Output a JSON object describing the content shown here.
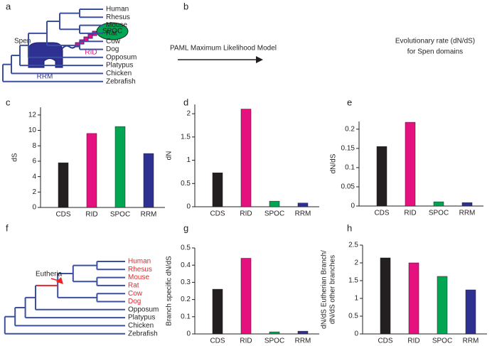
{
  "panel_labels": [
    "a",
    "b",
    "c",
    "d",
    "e",
    "f",
    "g",
    "h"
  ],
  "tree_a": {
    "color": "#3b4fa0",
    "species": [
      "Human",
      "Rhesus",
      "Mouse",
      "Rat",
      "Cow",
      "Dog",
      "Opposum",
      "Platypus",
      "Chicken",
      "Zebrafish"
    ]
  },
  "diagram_b": {
    "protein": "Spen",
    "spoc": "SPOC",
    "rid": "RID",
    "rrm": "RRM",
    "method": "PAML Maximum Likelihood Model",
    "result": [
      "Evolutionary rate (dN/dS)",
      "for Spen domains"
    ]
  },
  "tree_f": {
    "color": "#3b4fa0",
    "highlight_color": "#e8262a",
    "annotation": "Eutheria",
    "species": [
      {
        "name": "Human",
        "color": "#e8262a"
      },
      {
        "name": "Rhesus",
        "color": "#e8262a"
      },
      {
        "name": "Mouse",
        "color": "#e8262a"
      },
      {
        "name": "Rat",
        "color": "#e8262a"
      },
      {
        "name": "Cow",
        "color": "#e8262a"
      },
      {
        "name": "Dog",
        "color": "#e8262a"
      },
      {
        "name": "Opposum",
        "color": "#231f20"
      },
      {
        "name": "Platypus",
        "color": "#231f20"
      },
      {
        "name": "Chicken",
        "color": "#231f20"
      },
      {
        "name": "Zebrafish",
        "color": "#231f20"
      }
    ]
  },
  "chart_data": [
    {
      "type": "bar",
      "ylabel": "dS",
      "categories": [
        "CDS",
        "RID",
        "SPOC",
        "RRM"
      ],
      "values": [
        5.8,
        9.6,
        10.5,
        7.0
      ],
      "colors": [
        "#231f20",
        "#e4117f",
        "#00a651",
        "#2e3192"
      ],
      "ylim": [
        0,
        13
      ],
      "yticks": [
        0,
        2,
        4,
        6,
        8,
        10,
        12
      ]
    },
    {
      "type": "bar",
      "ylabel": "dN",
      "categories": [
        "CDS",
        "RID",
        "SPOC",
        "RRM"
      ],
      "values": [
        0.73,
        2.1,
        0.12,
        0.08
      ],
      "colors": [
        "#231f20",
        "#e4117f",
        "#00a651",
        "#2e3192"
      ],
      "ylim": [
        0,
        2.2
      ],
      "yticks": [
        0,
        0.5,
        1,
        1.5,
        2
      ]
    },
    {
      "type": "bar",
      "ylabel": "dN/dS",
      "categories": [
        "CDS",
        "RID",
        "SPOC",
        "RRM"
      ],
      "values": [
        0.155,
        0.218,
        0.011,
        0.009
      ],
      "colors": [
        "#231f20",
        "#e4117f",
        "#00a651",
        "#2e3192"
      ],
      "ylim": [
        0,
        0.22
      ],
      "yticks": [
        0,
        0.05,
        0.1,
        0.15,
        0.2
      ]
    },
    {
      "type": "bar",
      "ylabel": "Branch specific dN/dS",
      "categories": [
        "CDS",
        "RID",
        "SPOC",
        "RRM"
      ],
      "values": [
        0.26,
        0.44,
        0.012,
        0.016
      ],
      "colors": [
        "#231f20",
        "#e4117f",
        "#00a651",
        "#2e3192"
      ],
      "ylim": [
        0,
        0.5
      ],
      "yticks": [
        0,
        0.1,
        0.2,
        0.3,
        0.4,
        0.5
      ]
    },
    {
      "type": "bar",
      "ylabel": [
        "dN/dS Eutherian Branch/",
        "dN/dS other branches"
      ],
      "categories": [
        "CDS",
        "RID",
        "SPOC",
        "RRM"
      ],
      "values": [
        2.14,
        2.0,
        1.62,
        1.24
      ],
      "colors": [
        "#231f20",
        "#e4117f",
        "#00a651",
        "#2e3192"
      ],
      "ylim": [
        0,
        2.5
      ],
      "yticks": [
        0,
        0.5,
        1,
        1.5,
        2,
        2.5
      ]
    }
  ]
}
